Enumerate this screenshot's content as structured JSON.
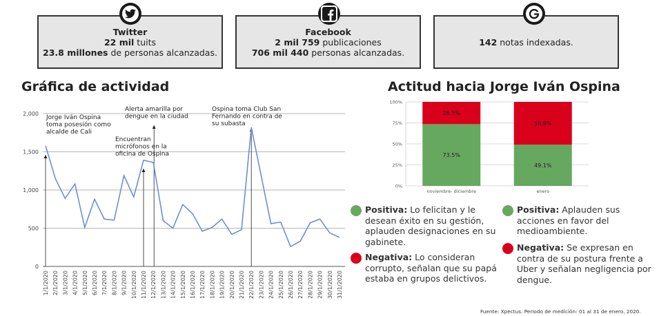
{
  "cards": {
    "twitter": {
      "title": "Twitter",
      "l1_bold": "22 mil",
      "l1_rest": " tuits",
      "l2_bold": "23.8 millones",
      "l2_rest": " de personas alcanzadas."
    },
    "facebook": {
      "title": "Facebook",
      "l1_bold": "2 mil 759",
      "l1_rest": " publicaciones",
      "l2_bold": "706 mil 440",
      "l2_rest": " personas alcanzadas."
    },
    "google": {
      "l1_bold": "142",
      "l1_rest": " notas indexadas."
    }
  },
  "icons": {
    "twitter": "twitter-bird-icon",
    "facebook": "facebook-f-icon",
    "google": "google-g-icon"
  },
  "activity": {
    "title": "Gráfica de actividad",
    "chart_data": {
      "type": "line",
      "color": "#6b8fd6",
      "x": [
        "1/1/2020",
        "2/1/2020",
        "3/1/2020",
        "4/1/2020",
        "5/1/2020",
        "6/1/2020",
        "7/1/2020",
        "8/1/2020",
        "9/1/2020",
        "10/1/2020",
        "11/1/2020",
        "12/1/2020",
        "13/1/2020",
        "14/1/2020",
        "15/1/2020",
        "16/1/2020",
        "17/1/2020",
        "18/1/2020",
        "19/1/2020",
        "20/1/2020",
        "21/1/2020",
        "22/1/2020",
        "23/1/2020",
        "24/1/2020",
        "25/1/2020",
        "26/1/2020",
        "27/1/2020",
        "28/1/2020",
        "29/1/2020",
        "30/1/2020",
        "31/1/2020"
      ],
      "values": [
        1580,
        1150,
        890,
        1080,
        510,
        880,
        620,
        605,
        1190,
        910,
        1390,
        1360,
        600,
        500,
        810,
        690,
        460,
        510,
        620,
        420,
        480,
        1820,
        1190,
        560,
        580,
        260,
        330,
        570,
        620,
        440,
        380
      ],
      "yticks": [
        "0",
        "500",
        "1,000",
        "1,500",
        "2,000"
      ],
      "ylim": [
        0,
        2000
      ],
      "grid": true,
      "annotations": [
        {
          "text": [
            "Jorge Iván Ospina",
            "toma posesión como",
            "alcalde de Cali"
          ],
          "x_index": 0
        },
        {
          "text": [
            "Alerta amarilla por",
            "dengue en la ciudad"
          ],
          "x_index": 11
        },
        {
          "text": [
            "Encuentran",
            "micrófonos en la",
            "oficina de Ospina"
          ],
          "x_index": 10
        },
        {
          "text": [
            "Ospina toma Club San",
            "Fernando  en contra de",
            "su subasta"
          ],
          "x_index": 21
        }
      ]
    }
  },
  "attitude": {
    "title": "Actitud hacia Jorge Iván Ospina",
    "chart_data": {
      "type": "bar",
      "stacked": true,
      "categories": [
        "noviembre- diciembre",
        "enero"
      ],
      "series": [
        {
          "name": "Positiva",
          "color": "#66a85f",
          "values": [
            73.5,
            49.1
          ],
          "labels": [
            "73.5%",
            "49.1%"
          ]
        },
        {
          "name": "Negativa",
          "color": "#d9001b",
          "values": [
            26.5,
            50.9
          ],
          "labels": [
            "26.5%",
            "50.9%"
          ]
        }
      ],
      "yticks": [
        "0%",
        "25%",
        "50%",
        "75%",
        "100%"
      ],
      "ylim": [
        0,
        100
      ],
      "grid": true
    }
  },
  "legends": [
    {
      "color": "#66a85f",
      "label": "Positiva:",
      "text": " Lo felicitan y le desean éxito en su gestión, aplauden designaciones en su gabinete."
    },
    {
      "color": "#66a85f",
      "label": "Positiva:",
      "text": "  Aplauden sus acciones en favor del medioambiente."
    },
    {
      "color": "#d9001b",
      "label": "Negativa:",
      "text": " Lo consideran corrupto, señalan que su papá estaba en grupos delictivos."
    },
    {
      "color": "#d9001b",
      "label": "Negativa:",
      "text": " Se expresan en contra de su postura frente a Uber y señalan negligencia por dengue."
    }
  ],
  "footer": "Fuente: Xpectus. Periodo de medición:  01 al 31 de enero, 2020."
}
